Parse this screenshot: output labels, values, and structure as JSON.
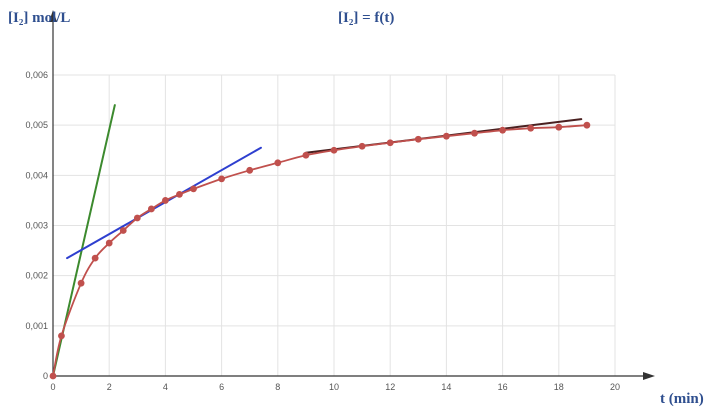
{
  "chart_data": {
    "type": "scatter",
    "title": "[I₂] = f(t)",
    "ylabel": "[I₂] mol/L",
    "xlabel": "t (min)",
    "xlim": [
      0,
      20
    ],
    "ylim": [
      0,
      0.006
    ],
    "x_ticks": [
      {
        "value": 0,
        "label": "0"
      },
      {
        "value": 2,
        "label": "2"
      },
      {
        "value": 4,
        "label": "4"
      },
      {
        "value": 6,
        "label": "6"
      },
      {
        "value": 8,
        "label": "8"
      },
      {
        "value": 10,
        "label": "10"
      },
      {
        "value": 12,
        "label": "12"
      },
      {
        "value": 14,
        "label": "14"
      },
      {
        "value": 16,
        "label": "16"
      },
      {
        "value": 18,
        "label": "18"
      },
      {
        "value": 20,
        "label": "20"
      }
    ],
    "y_ticks": [
      {
        "value": 0,
        "label": "0"
      },
      {
        "value": 0.001,
        "label": "0,001"
      },
      {
        "value": 0.002,
        "label": "0,002"
      },
      {
        "value": 0.003,
        "label": "0,003"
      },
      {
        "value": 0.004,
        "label": "0,004"
      },
      {
        "value": 0.005,
        "label": "0,005"
      },
      {
        "value": 0.006,
        "label": "0,006"
      }
    ],
    "grid": true,
    "series": [
      {
        "kind": "curve",
        "color": "#c0504d",
        "points": [
          [
            0,
            0
          ],
          [
            0.3,
            0.0008
          ],
          [
            1,
            0.00185
          ],
          [
            1.5,
            0.00235
          ],
          [
            2,
            0.00265
          ],
          [
            2.5,
            0.0029
          ],
          [
            3,
            0.00315
          ],
          [
            3.5,
            0.00333
          ],
          [
            4,
            0.0035
          ],
          [
            4.5,
            0.00362
          ],
          [
            5,
            0.00373
          ],
          [
            6,
            0.00393
          ],
          [
            7,
            0.0041
          ],
          [
            8,
            0.00425
          ],
          [
            9,
            0.0044
          ],
          [
            10,
            0.0045
          ],
          [
            11,
            0.00458
          ],
          [
            12,
            0.00465
          ],
          [
            13,
            0.00472
          ],
          [
            14,
            0.00478
          ],
          [
            15,
            0.00484
          ],
          [
            16,
            0.0049
          ],
          [
            17,
            0.00494
          ],
          [
            18,
            0.00496
          ],
          [
            19,
            0.005
          ]
        ]
      }
    ],
    "tangent_lines": [
      {
        "color": "#3c8a2e",
        "from": [
          0,
          0
        ],
        "to": [
          2.2,
          0.0054
        ]
      },
      {
        "color": "#2e3fcf",
        "from": [
          0.5,
          0.00235
        ],
        "to": [
          7.4,
          0.00455
        ]
      },
      {
        "color": "#4a2020",
        "from": [
          9,
          0.00445
        ],
        "to": [
          18.8,
          0.00512
        ]
      }
    ]
  }
}
